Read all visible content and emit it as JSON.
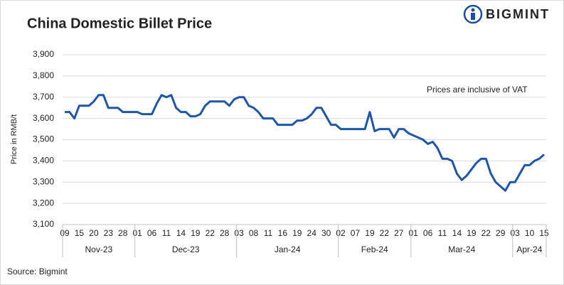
{
  "logo": "BIGMINT",
  "chart_data": {
    "type": "line",
    "title": "China Domestic Billet Price",
    "annotation": "Prices are inclusive of VAT",
    "y_label": "Price in RMB/t",
    "source": "Source: Bigmint",
    "categories": [
      "09",
      null,
      null,
      "15",
      null,
      null,
      "20",
      null,
      null,
      "23",
      null,
      null,
      "28",
      null,
      null,
      "01",
      null,
      null,
      "06",
      null,
      null,
      "11",
      null,
      null,
      "14",
      null,
      null,
      "19",
      null,
      null,
      "22",
      null,
      null,
      "28",
      null,
      null,
      "03",
      null,
      null,
      "08",
      null,
      null,
      "11",
      null,
      null,
      "16",
      null,
      null,
      "19",
      null,
      null,
      "24",
      null,
      null,
      "30",
      null,
      null,
      "02",
      null,
      null,
      "07",
      null,
      null,
      "19",
      null,
      null,
      "22",
      null,
      null,
      "27",
      null,
      null,
      "01",
      null,
      null,
      "06",
      null,
      null,
      "11",
      null,
      null,
      "14",
      null,
      null,
      "19",
      null,
      null,
      "22",
      null,
      null,
      "29",
      null,
      null,
      "03",
      null,
      null,
      "10",
      null,
      null,
      "15"
    ],
    "month_groups": [
      {
        "label": "Nov-23",
        "count": 15
      },
      {
        "label": "Dec-23",
        "count": 21
      },
      {
        "label": "Jan-24",
        "count": 21
      },
      {
        "label": "Feb-24",
        "count": 15
      },
      {
        "label": "Mar-24",
        "count": 21
      },
      {
        "label": "Apr-24",
        "count": 7
      }
    ],
    "series": [
      {
        "name": "Billet price",
        "color": "#1f57a8",
        "values": [
          3630,
          3630,
          3600,
          3660,
          3660,
          3660,
          3680,
          3710,
          3710,
          3650,
          3650,
          3650,
          3630,
          3630,
          3630,
          3630,
          3620,
          3620,
          3620,
          3670,
          3710,
          3700,
          3710,
          3650,
          3630,
          3630,
          3610,
          3610,
          3620,
          3660,
          3680,
          3680,
          3680,
          3680,
          3660,
          3690,
          3700,
          3700,
          3660,
          3650,
          3630,
          3600,
          3600,
          3600,
          3570,
          3570,
          3570,
          3570,
          3590,
          3590,
          3600,
          3620,
          3650,
          3650,
          3610,
          3570,
          3570,
          3550,
          3550,
          3550,
          3550,
          3550,
          3550,
          3630,
          3540,
          3550,
          3550,
          3550,
          3510,
          3550,
          3550,
          3530,
          3520,
          3510,
          3500,
          3480,
          3490,
          3460,
          3410,
          3410,
          3400,
          3340,
          3310,
          3330,
          3360,
          3390,
          3410,
          3410,
          3340,
          3300,
          3280,
          3260,
          3300,
          3300,
          3340,
          3380,
          3380,
          3400,
          3410,
          3430
        ]
      }
    ],
    "ylim": [
      3100,
      3900
    ],
    "yticks": [
      {
        "value": 3100,
        "label": "3,100"
      },
      {
        "value": 3200,
        "label": "3,200"
      },
      {
        "value": 3300,
        "label": "3,300"
      },
      {
        "value": 3400,
        "label": "3,400"
      },
      {
        "value": 3500,
        "label": "3,500"
      },
      {
        "value": 3600,
        "label": "3,600"
      },
      {
        "value": 3700,
        "label": "3,700"
      },
      {
        "value": 3800,
        "label": "3,800"
      },
      {
        "value": 3900,
        "label": "3,900"
      }
    ],
    "grid": true
  }
}
